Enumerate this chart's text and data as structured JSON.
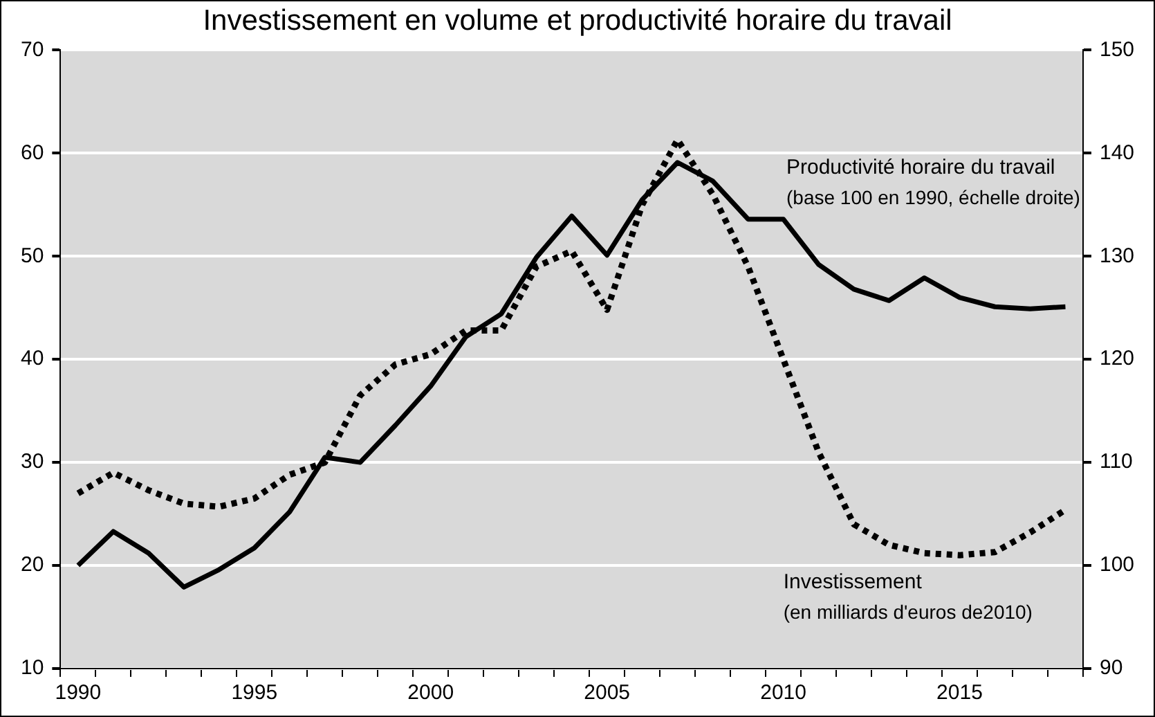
{
  "chart_data": {
    "type": "line",
    "title": "Investissement en volume et productivité horaire du travail",
    "categories": [
      "1990",
      null,
      null,
      null,
      null,
      "1995",
      null,
      null,
      null,
      null,
      "2000",
      null,
      null,
      null,
      null,
      "2005",
      null,
      null,
      null,
      null,
      "2010",
      null,
      null,
      null,
      null,
      "2015",
      null,
      null,
      null
    ],
    "series": [
      {
        "name": "Productivité horaire du travail",
        "color": "#000000",
        "axis": "y2",
        "line_style": "solid",
        "values": [
          100,
          103.3,
          101.2,
          97.9,
          99.6,
          101.7,
          105.2,
          110.5,
          110,
          113.6,
          117.4,
          122.2,
          124.4,
          129.9,
          133.9,
          130.1,
          135.5,
          139.1,
          137.3,
          133.6,
          133.6,
          129.2,
          126.8,
          125.7,
          127.9,
          126,
          125.1,
          124.9,
          125.1
        ]
      },
      {
        "name": "Investissement",
        "color": "#000000",
        "line_style": "dotted",
        "values": [
          27,
          29,
          27.3,
          26,
          25.7,
          26.5,
          28.8,
          30,
          36.5,
          39.5,
          40.5,
          42.8,
          42.8,
          49,
          50.5,
          44.8,
          55,
          61.3,
          56,
          49,
          40,
          31,
          24,
          22,
          21.2,
          21,
          21.3,
          23.2,
          25.4
        ]
      }
    ],
    "annotations": [
      "(base 100 en 1990, échelle droite)",
      "(en milliards d'euros de2010)"
    ],
    "ylim": [
      10,
      70
    ],
    "yticks": [
      10,
      20,
      30,
      40,
      50,
      60,
      70
    ],
    "y2lim": [
      90,
      150
    ],
    "y2ticks": [
      90,
      100,
      110,
      120,
      130,
      140,
      150
    ],
    "grid": "y",
    "legend": false,
    "marker": "none"
  }
}
